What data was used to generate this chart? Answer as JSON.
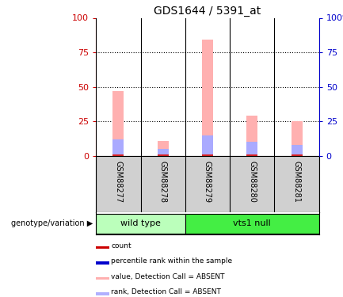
{
  "title": "GDS1644 / 5391_at",
  "samples": [
    "GSM88277",
    "GSM88278",
    "GSM88279",
    "GSM88280",
    "GSM88281"
  ],
  "pink_bars": [
    47,
    11,
    84,
    29,
    25
  ],
  "blue_bars": [
    12,
    5,
    15,
    10,
    8
  ],
  "red_square_val": 1,
  "ylim": [
    0,
    100
  ],
  "yticks": [
    0,
    25,
    50,
    75,
    100
  ],
  "ytick_labels_left": [
    "0",
    "25",
    "50",
    "75",
    "100"
  ],
  "ytick_labels_right": [
    "0",
    "25",
    "50",
    "75",
    "100%"
  ],
  "genotype_groups": [
    {
      "label": "wild type",
      "span": [
        0,
        2
      ],
      "color": "#bbffbb"
    },
    {
      "label": "vts1 null",
      "span": [
        2,
        5
      ],
      "color": "#44ee44"
    }
  ],
  "legend_items": [
    {
      "color": "#cc0000",
      "label": "count"
    },
    {
      "color": "#0000cc",
      "label": "percentile rank within the sample"
    },
    {
      "color": "#ffb0b0",
      "label": "value, Detection Call = ABSENT"
    },
    {
      "color": "#b0b0ff",
      "label": "rank, Detection Call = ABSENT"
    }
  ],
  "pink_color": "#ffb0b0",
  "blue_color": "#aaaaff",
  "red_color": "#dd2222",
  "left_axis_color": "#cc0000",
  "right_axis_color": "#0000cc",
  "bg_color": "#ffffff",
  "plot_bg": "#ffffff",
  "label_area_color": "#d0d0d0",
  "genotype_label": "genotype/variation"
}
